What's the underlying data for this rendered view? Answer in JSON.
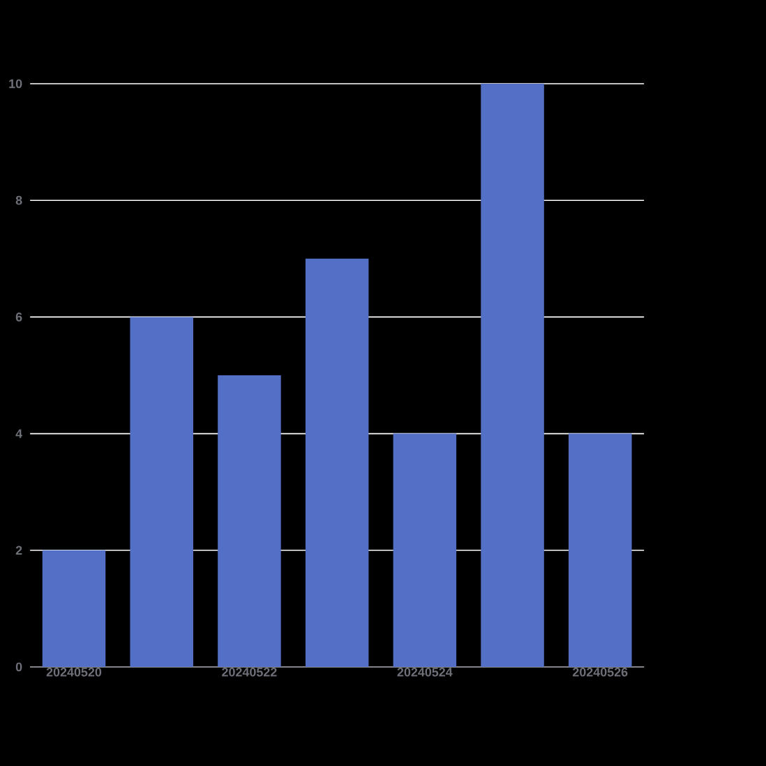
{
  "chart_data": {
    "type": "bar",
    "categories": [
      "20240520",
      null,
      "20240522",
      null,
      "20240524",
      null,
      "20240526"
    ],
    "values": [
      2,
      6,
      5,
      7,
      4,
      10,
      4
    ],
    "color": "#5470c6",
    "ylim": [
      0,
      10
    ],
    "yticks": [
      0,
      2,
      4,
      6,
      8,
      10
    ],
    "grid": "y"
  }
}
